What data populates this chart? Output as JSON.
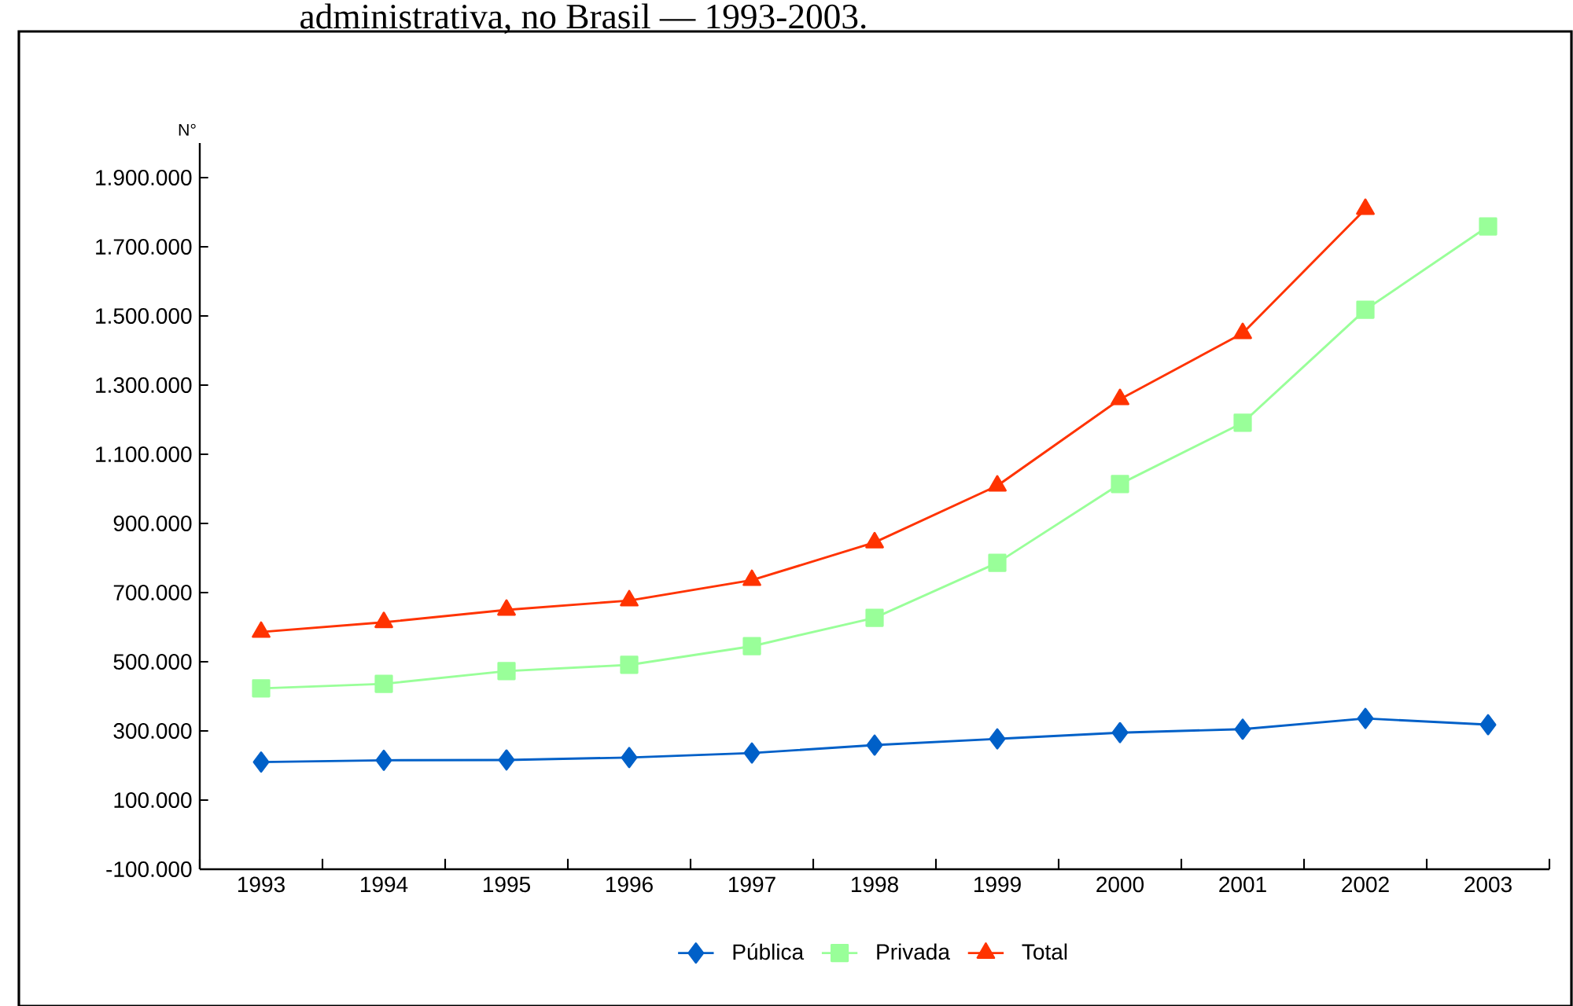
{
  "chart_data": {
    "type": "line",
    "title": "administrativa, no Brasil — 1993-2003.",
    "ylabel": "N°",
    "categories": [
      "1993",
      "1994",
      "1995",
      "1996",
      "1997",
      "1998",
      "1999",
      "2000",
      "2001",
      "2002",
      "2003"
    ],
    "series": [
      {
        "name": "Pública",
        "color": "#0060c8",
        "marker": "diamond",
        "values": [
          210000,
          215000,
          216000,
          223000,
          236000,
          259000,
          277000,
          295000,
          305000,
          336000,
          318000
        ]
      },
      {
        "name": "Privada",
        "color": "#99ff99",
        "marker": "square",
        "values": [
          423000,
          436000,
          473000,
          491000,
          545000,
          627000,
          786000,
          1014000,
          1191000,
          1518000,
          1759000
        ]
      },
      {
        "name": "Total",
        "color": "#ff3300",
        "marker": "triangle",
        "values": [
          586000,
          614000,
          650000,
          677000,
          736000,
          845000,
          1009000,
          1259000,
          1450000,
          1809000,
          null
        ]
      }
    ],
    "ylim": [
      -100000,
      2000000
    ],
    "yticks": [
      {
        "value": -100000,
        "label": "-100.000"
      },
      {
        "value": 100000,
        "label": "100.000"
      },
      {
        "value": 300000,
        "label": "300.000"
      },
      {
        "value": 500000,
        "label": "500.000"
      },
      {
        "value": 700000,
        "label": "700.000"
      },
      {
        "value": 900000,
        "label": "900.000"
      },
      {
        "value": 1100000,
        "label": "1.100.000"
      },
      {
        "value": 1300000,
        "label": "1.300.000"
      },
      {
        "value": 1500000,
        "label": "1.500.000"
      },
      {
        "value": 1700000,
        "label": "1.700.000"
      },
      {
        "value": 1900000,
        "label": "1.900.000"
      }
    ],
    "legend": "bottom"
  }
}
